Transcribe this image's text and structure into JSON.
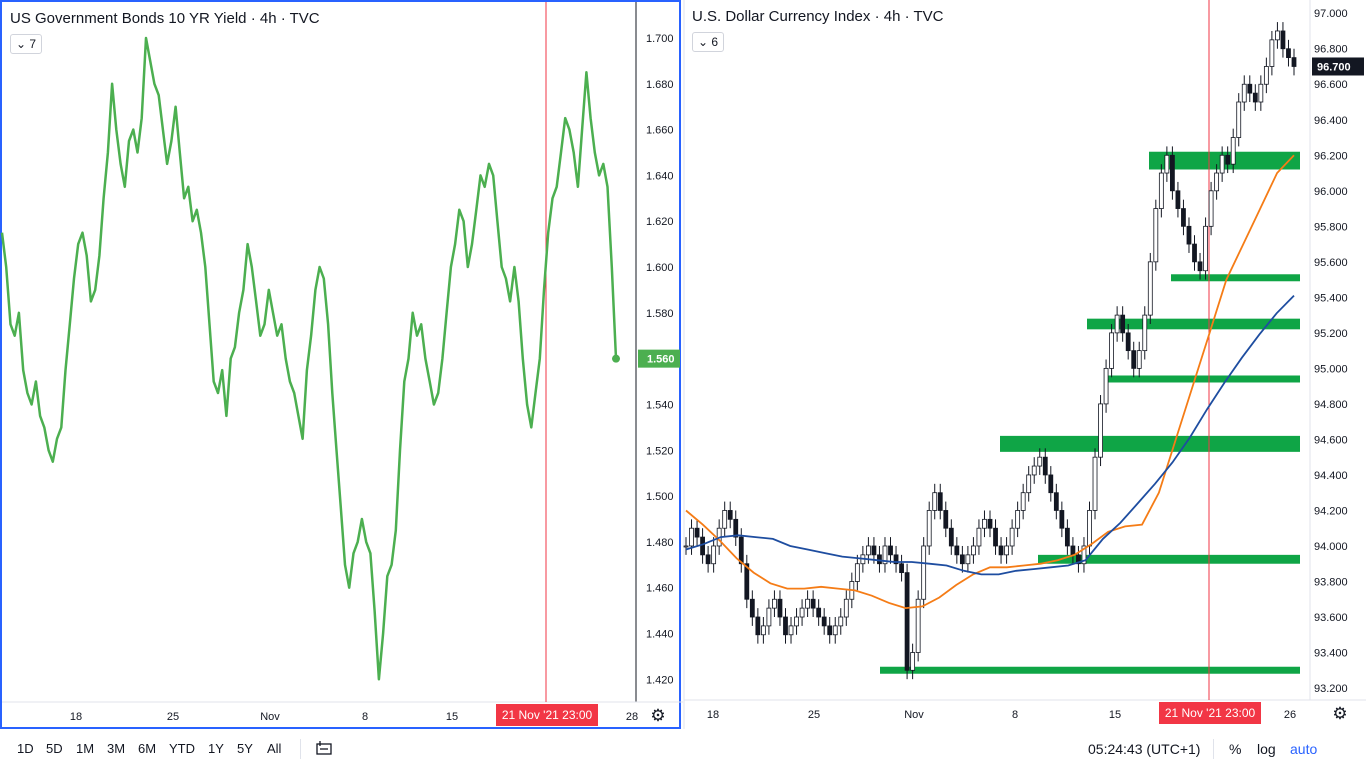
{
  "colors": {
    "yield_line": "#4caf50",
    "accent": "#2962ff",
    "crosshair": "#f23645",
    "zone": "#0fa546",
    "ma_orange": "#f57c16",
    "ma_blue": "#1e4da0",
    "candle": "#131722"
  },
  "left_chart": {
    "title": "US Government Bonds 10 YR Yield · 4h · TVC",
    "indicator_count": "7",
    "last_value": "1.560",
    "crosshair_label": "21 Nov '21   23:00",
    "settings_icon": "gear-icon"
  },
  "right_chart": {
    "title": "U.S. Dollar Currency Index · 4h · TVC",
    "indicator_count": "6",
    "last_value": "96.700",
    "crosshair_label": "21 Nov '21   23:00",
    "settings_icon": "gear-icon"
  },
  "chart_data": [
    {
      "type": "line",
      "title": "US Government Bonds 10 YR Yield · 4h · TVC",
      "x_ticks": [
        "18",
        "25",
        "Nov",
        "8",
        "15",
        "28"
      ],
      "y_ticks": [
        "1.700",
        "1.680",
        "1.660",
        "1.640",
        "1.620",
        "1.600",
        "1.580",
        "1.560",
        "1.540",
        "1.520",
        "1.500",
        "1.480",
        "1.460",
        "1.440",
        "1.420"
      ],
      "ylim": [
        1.4101,
        1.7157
      ],
      "series": [
        {
          "values": [
            1.615,
            1.6,
            1.575,
            1.57,
            1.58,
            1.555,
            1.545,
            1.54,
            1.55,
            1.535,
            1.53,
            1.52,
            1.515,
            1.525,
            1.53,
            1.555,
            1.575,
            1.595,
            1.61,
            1.615,
            1.605,
            1.585,
            1.59,
            1.605,
            1.63,
            1.65,
            1.68,
            1.66,
            1.645,
            1.635,
            1.655,
            1.66,
            1.65,
            1.665,
            1.7,
            1.69,
            1.68,
            1.675,
            1.66,
            1.645,
            1.655,
            1.67,
            1.65,
            1.63,
            1.635,
            1.62,
            1.625,
            1.615,
            1.6,
            1.575,
            1.55,
            1.545,
            1.555,
            1.535,
            1.56,
            1.565,
            1.58,
            1.59,
            1.61,
            1.6,
            1.585,
            1.57,
            1.575,
            1.59,
            1.58,
            1.57,
            1.575,
            1.56,
            1.55,
            1.545,
            1.535,
            1.525,
            1.555,
            1.57,
            1.59,
            1.6,
            1.595,
            1.575,
            1.545,
            1.52,
            1.495,
            1.47,
            1.46,
            1.475,
            1.48,
            1.49,
            1.48,
            1.475,
            1.45,
            1.42,
            1.44,
            1.465,
            1.47,
            1.485,
            1.52,
            1.55,
            1.56,
            1.58,
            1.57,
            1.575,
            1.56,
            1.55,
            1.54,
            1.545,
            1.56,
            1.58,
            1.6,
            1.61,
            1.625,
            1.62,
            1.6,
            1.61,
            1.625,
            1.64,
            1.635,
            1.645,
            1.64,
            1.62,
            1.6,
            1.595,
            1.585,
            1.6,
            1.585,
            1.56,
            1.54,
            1.53,
            1.545,
            1.56,
            1.59,
            1.615,
            1.63,
            1.635,
            1.65,
            1.665,
            1.66,
            1.65,
            1.635,
            1.66,
            1.685,
            1.665,
            1.65,
            1.64,
            1.645,
            1.635,
            1.6,
            1.56
          ]
        }
      ],
      "last_value": 1.56,
      "grid": false
    },
    {
      "type": "line",
      "title": "U.S. Dollar Currency Index · 4h · TVC",
      "x_ticks": [
        "18",
        "25",
        "Nov",
        "8",
        "15",
        "26"
      ],
      "y_ticks": [
        "97.000",
        "96.800",
        "96.600",
        "96.400",
        "96.200",
        "96.000",
        "95.800",
        "95.600",
        "95.400",
        "95.200",
        "95.000",
        "94.800",
        "94.600",
        "94.400",
        "94.200",
        "94.000",
        "93.800",
        "93.600",
        "93.400",
        "93.200"
      ],
      "ylim": [
        93.1327,
        97.0744
      ],
      "series": [
        {
          "name": "close",
          "values": [
            94.0,
            94.1,
            94.05,
            93.95,
            93.9,
            94.0,
            94.1,
            94.2,
            94.15,
            94.05,
            93.9,
            93.7,
            93.6,
            93.5,
            93.55,
            93.65,
            93.7,
            93.6,
            93.5,
            93.55,
            93.6,
            93.65,
            93.7,
            93.65,
            93.6,
            93.55,
            93.5,
            93.55,
            93.6,
            93.7,
            93.8,
            93.9,
            93.95,
            94.0,
            93.95,
            93.9,
            94.0,
            93.95,
            93.9,
            93.85,
            93.3,
            93.4,
            93.7,
            94.0,
            94.2,
            94.3,
            94.2,
            94.1,
            94.0,
            93.95,
            93.9,
            93.95,
            94.0,
            94.1,
            94.15,
            94.1,
            94.0,
            93.95,
            94.0,
            94.1,
            94.2,
            94.3,
            94.4,
            94.45,
            94.5,
            94.4,
            94.3,
            94.2,
            94.1,
            94.0,
            93.95,
            93.9,
            94.0,
            94.2,
            94.5,
            94.8,
            95.0,
            95.2,
            95.3,
            95.2,
            95.1,
            95.0,
            95.1,
            95.3,
            95.6,
            95.9,
            96.1,
            96.2,
            96.0,
            95.9,
            95.8,
            95.7,
            95.6,
            95.55,
            95.8,
            96.0,
            96.1,
            96.2,
            96.15,
            96.3,
            96.5,
            96.6,
            96.55,
            96.5,
            96.6,
            96.7,
            96.85,
            96.9,
            96.8,
            96.75,
            96.7
          ]
        },
        {
          "name": "MA fast",
          "values": [
            94.2,
            94.12,
            94.03,
            93.93,
            93.85,
            93.79,
            93.76,
            93.76,
            93.77,
            93.76,
            93.75,
            93.72,
            93.68,
            93.65,
            93.66,
            93.71,
            93.78,
            93.84,
            93.88,
            93.88,
            93.89,
            93.9,
            93.92,
            93.95,
            94.01,
            94.08,
            94.11,
            94.12,
            94.3,
            94.6,
            94.9,
            95.2,
            95.5,
            95.7,
            95.9,
            96.1,
            96.2
          ]
        },
        {
          "name": "MA slow",
          "values": [
            93.98,
            94.01,
            94.05,
            94.06,
            94.05,
            94.04,
            94.0,
            93.98,
            93.96,
            93.94,
            93.93,
            93.92,
            93.91,
            93.91,
            93.9,
            93.89,
            93.86,
            93.84,
            93.84,
            93.86,
            93.87,
            93.88,
            93.89,
            93.92,
            94.04,
            94.13,
            94.24,
            94.35,
            94.47,
            94.61,
            94.77,
            94.92,
            95.06,
            95.19,
            95.31,
            95.41
          ]
        }
      ],
      "zones": [
        {
          "from": 96.12,
          "to": 96.22
        },
        {
          "from": 95.51,
          "to": 95.53
        },
        {
          "from": 95.22,
          "to": 95.28
        },
        {
          "from": 94.94,
          "to": 94.96
        },
        {
          "from": 94.53,
          "to": 94.62
        },
        {
          "from": 93.9,
          "to": 93.95
        },
        {
          "from": 93.29,
          "to": 93.32
        }
      ],
      "last_value": 96.7,
      "grid": false
    }
  ],
  "bottom_bar": {
    "ranges": [
      "1D",
      "5D",
      "1M",
      "3M",
      "6M",
      "YTD",
      "1Y",
      "5Y",
      "All"
    ],
    "compare_icon": "compare-range-icon",
    "time": "05:24:43 (UTC+1)",
    "percent": "%",
    "log": "log",
    "auto": "auto"
  }
}
